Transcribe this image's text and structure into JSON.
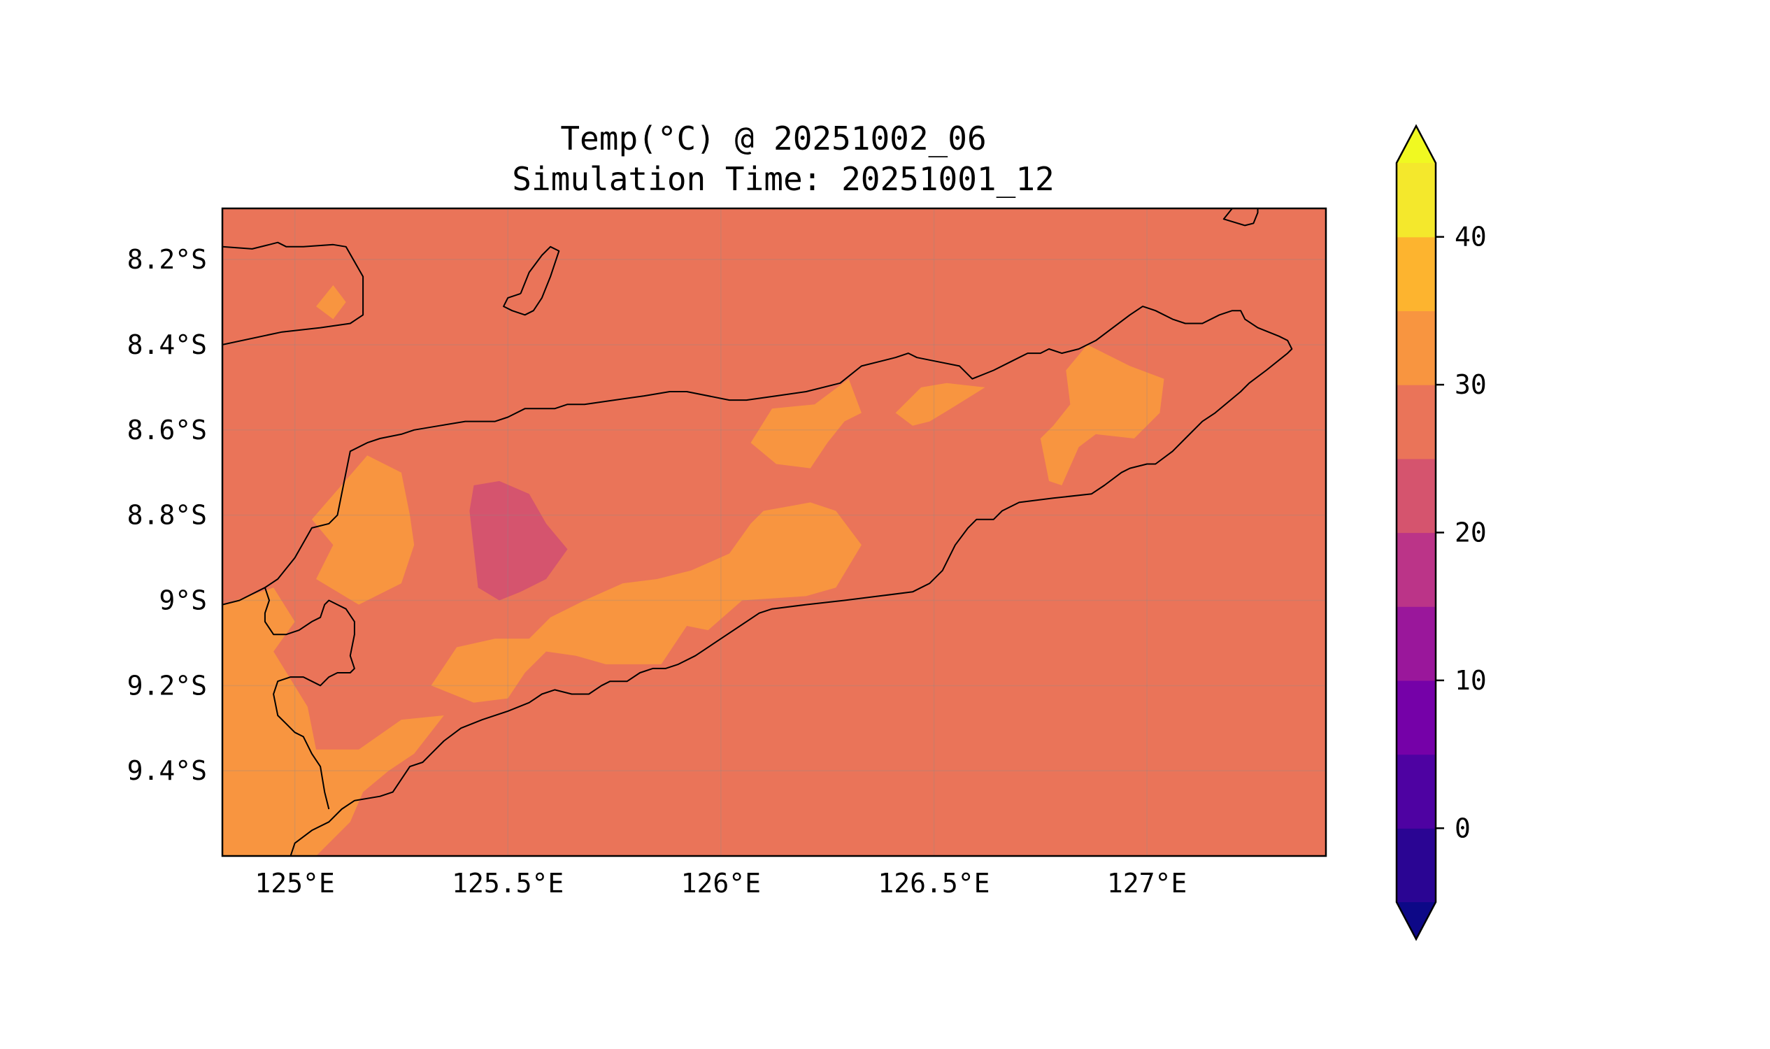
{
  "title": {
    "line1": "Temp(°C) @ 20251002_06",
    "line2": "Simulation Time: 20251001_12"
  },
  "map": {
    "lon_range": [
      124.83,
      127.42
    ],
    "lat_range": [
      -9.6,
      -8.08
    ],
    "x_ticks": [
      {
        "value": 125.0,
        "label": "125°E"
      },
      {
        "value": 125.5,
        "label": "125.5°E"
      },
      {
        "value": 126.0,
        "label": "126°E"
      },
      {
        "value": 126.5,
        "label": "126.5°E"
      },
      {
        "value": 127.0,
        "label": "127°E"
      }
    ],
    "y_ticks": [
      {
        "value": -8.2,
        "label": "8.2°S"
      },
      {
        "value": -8.4,
        "label": "8.4°S"
      },
      {
        "value": -8.6,
        "label": "8.6°S"
      },
      {
        "value": -8.8,
        "label": "8.8°S"
      },
      {
        "value": -9.0,
        "label": "9°S"
      },
      {
        "value": -9.2,
        "label": "9.2°S"
      },
      {
        "value": -9.4,
        "label": "9.4°S"
      }
    ],
    "gridlines": true,
    "background_level_color": "#ea7459"
  },
  "colorbar": {
    "levels": [
      -5,
      0,
      5,
      10,
      15,
      20,
      25,
      30,
      35,
      40,
      45
    ],
    "colors": [
      "#2a0593",
      "#4e02a2",
      "#7501a8",
      "#9a179b",
      "#bb3488",
      "#d5546e",
      "#ea7459",
      "#f89540",
      "#fdb42f",
      "#f4e82c"
    ],
    "under_color": "#0d0887",
    "over_color": "#f0f921",
    "tick_values": [
      0,
      10,
      20,
      30,
      40
    ],
    "tick_labels": [
      "0",
      "10",
      "20",
      "30",
      "40"
    ],
    "extend": "both"
  },
  "chart_data": {
    "type": "heatmap",
    "variable": "Temp(°C)",
    "base_level_range": [
      25,
      30
    ],
    "regions": [
      {
        "level_range": [
          30,
          35
        ],
        "color": "#f89540",
        "polygon_lonlat": [
          [
            125.05,
            -8.31
          ],
          [
            125.09,
            -8.34
          ],
          [
            125.12,
            -8.3
          ],
          [
            125.09,
            -8.26
          ],
          [
            125.05,
            -8.31
          ]
        ]
      },
      {
        "level_range": [
          30,
          35
        ],
        "color": "#f89540",
        "polygon_lonlat": [
          [
            125.04,
            -8.81
          ],
          [
            125.17,
            -8.66
          ],
          [
            125.25,
            -8.7
          ],
          [
            125.27,
            -8.8
          ],
          [
            125.28,
            -8.87
          ],
          [
            125.25,
            -8.96
          ],
          [
            125.15,
            -9.01
          ],
          [
            125.05,
            -8.95
          ],
          [
            125.09,
            -8.87
          ],
          [
            125.04,
            -8.81
          ]
        ]
      },
      {
        "level_range": [
          30,
          35
        ],
        "color": "#f89540",
        "polygon_lonlat": [
          [
            124.83,
            -9.01
          ],
          [
            124.95,
            -8.97
          ],
          [
            125.0,
            -9.05
          ],
          [
            124.95,
            -9.12
          ],
          [
            125.03,
            -9.25
          ],
          [
            125.05,
            -9.35
          ],
          [
            125.15,
            -9.35
          ],
          [
            125.25,
            -9.28
          ],
          [
            125.35,
            -9.27
          ],
          [
            125.28,
            -9.36
          ],
          [
            125.22,
            -9.4
          ],
          [
            125.16,
            -9.45
          ],
          [
            125.13,
            -9.52
          ],
          [
            125.05,
            -9.6
          ],
          [
            124.83,
            -9.6
          ],
          [
            124.83,
            -9.01
          ]
        ]
      },
      {
        "level_range": [
          30,
          35
        ],
        "color": "#f89540",
        "polygon_lonlat": [
          [
            125.32,
            -9.2
          ],
          [
            125.38,
            -9.11
          ],
          [
            125.47,
            -9.09
          ],
          [
            125.55,
            -9.09
          ],
          [
            125.6,
            -9.04
          ],
          [
            125.68,
            -9.0
          ],
          [
            125.77,
            -8.96
          ],
          [
            125.85,
            -8.95
          ],
          [
            125.93,
            -8.93
          ],
          [
            126.02,
            -8.89
          ],
          [
            126.07,
            -8.82
          ],
          [
            126.1,
            -8.79
          ],
          [
            126.21,
            -8.77
          ],
          [
            126.27,
            -8.79
          ],
          [
            126.33,
            -8.87
          ],
          [
            126.27,
            -8.97
          ],
          [
            126.2,
            -8.99
          ],
          [
            126.05,
            -9.0
          ],
          [
            125.97,
            -9.07
          ],
          [
            125.92,
            -9.06
          ],
          [
            125.86,
            -9.15
          ],
          [
            125.73,
            -9.15
          ],
          [
            125.66,
            -9.13
          ],
          [
            125.59,
            -9.12
          ],
          [
            125.54,
            -9.17
          ],
          [
            125.5,
            -9.23
          ],
          [
            125.42,
            -9.24
          ],
          [
            125.32,
            -9.2
          ]
        ]
      },
      {
        "level_range": [
          30,
          35
        ],
        "color": "#f89540",
        "polygon_lonlat": [
          [
            126.07,
            -8.63
          ],
          [
            126.12,
            -8.55
          ],
          [
            126.22,
            -8.54
          ],
          [
            126.3,
            -8.48
          ],
          [
            126.33,
            -8.56
          ],
          [
            126.29,
            -8.58
          ],
          [
            126.25,
            -8.63
          ],
          [
            126.21,
            -8.69
          ],
          [
            126.13,
            -8.68
          ],
          [
            126.07,
            -8.63
          ]
        ]
      },
      {
        "level_range": [
          30,
          35
        ],
        "color": "#f89540",
        "polygon_lonlat": [
          [
            126.41,
            -8.56
          ],
          [
            126.47,
            -8.5
          ],
          [
            126.53,
            -8.49
          ],
          [
            126.62,
            -8.5
          ],
          [
            126.54,
            -8.55
          ],
          [
            126.49,
            -8.58
          ],
          [
            126.45,
            -8.59
          ],
          [
            126.41,
            -8.56
          ]
        ]
      },
      {
        "level_range": [
          30,
          35
        ],
        "color": "#f89540",
        "polygon_lonlat": [
          [
            126.75,
            -8.62
          ],
          [
            126.78,
            -8.59
          ],
          [
            126.82,
            -8.54
          ],
          [
            126.81,
            -8.46
          ],
          [
            126.86,
            -8.4
          ],
          [
            126.96,
            -8.45
          ],
          [
            127.04,
            -8.48
          ],
          [
            127.03,
            -8.56
          ],
          [
            126.97,
            -8.62
          ],
          [
            126.88,
            -8.61
          ],
          [
            126.84,
            -8.64
          ],
          [
            126.8,
            -8.73
          ],
          [
            126.77,
            -8.72
          ],
          [
            126.75,
            -8.62
          ]
        ]
      },
      {
        "level_range": [
          20,
          25
        ],
        "color": "#d5546e",
        "polygon_lonlat": [
          [
            125.42,
            -8.73
          ],
          [
            125.48,
            -8.72
          ],
          [
            125.55,
            -8.75
          ],
          [
            125.59,
            -8.82
          ],
          [
            125.64,
            -8.88
          ],
          [
            125.59,
            -8.95
          ],
          [
            125.53,
            -8.98
          ],
          [
            125.48,
            -9.0
          ],
          [
            125.43,
            -8.97
          ],
          [
            125.42,
            -8.88
          ],
          [
            125.41,
            -8.79
          ],
          [
            125.42,
            -8.73
          ]
        ]
      }
    ]
  },
  "coastlines_lonlat": [
    [
      [
        124.83,
        -8.17
      ],
      [
        124.9,
        -8.175
      ],
      [
        124.94,
        -8.165
      ],
      [
        124.96,
        -8.16
      ],
      [
        124.98,
        -8.17
      ],
      [
        125.02,
        -8.17
      ],
      [
        125.09,
        -8.165
      ],
      [
        125.12,
        -8.17
      ],
      [
        125.16,
        -8.24
      ],
      [
        125.16,
        -8.33
      ],
      [
        125.13,
        -8.35
      ],
      [
        125.06,
        -8.36
      ],
      [
        124.97,
        -8.37
      ],
      [
        124.83,
        -8.4
      ]
    ],
    [
      [
        125.53,
        -8.28
      ],
      [
        125.55,
        -8.23
      ],
      [
        125.58,
        -8.19
      ],
      [
        125.6,
        -8.17
      ],
      [
        125.62,
        -8.18
      ],
      [
        125.6,
        -8.24
      ],
      [
        125.58,
        -8.29
      ],
      [
        125.56,
        -8.32
      ],
      [
        125.54,
        -8.33
      ],
      [
        125.51,
        -8.32
      ],
      [
        125.49,
        -8.31
      ],
      [
        125.5,
        -8.29
      ],
      [
        125.53,
        -8.28
      ]
    ],
    [
      [
        127.2,
        -8.08
      ],
      [
        127.18,
        -8.105
      ],
      [
        127.23,
        -8.12
      ],
      [
        127.25,
        -8.115
      ],
      [
        127.26,
        -8.09
      ],
      [
        127.26,
        -8.08
      ]
    ],
    [
      [
        124.83,
        -9.01
      ],
      [
        124.87,
        -9.0
      ],
      [
        124.93,
        -8.97
      ],
      [
        124.96,
        -8.95
      ],
      [
        125.0,
        -8.9
      ],
      [
        125.04,
        -8.83
      ],
      [
        125.08,
        -8.82
      ],
      [
        125.1,
        -8.8
      ],
      [
        125.12,
        -8.7
      ],
      [
        125.13,
        -8.65
      ],
      [
        125.17,
        -8.63
      ],
      [
        125.2,
        -8.62
      ],
      [
        125.25,
        -8.61
      ],
      [
        125.28,
        -8.6
      ],
      [
        125.34,
        -8.59
      ],
      [
        125.4,
        -8.58
      ],
      [
        125.47,
        -8.58
      ],
      [
        125.5,
        -8.57
      ],
      [
        125.54,
        -8.55
      ],
      [
        125.61,
        -8.55
      ],
      [
        125.64,
        -8.54
      ],
      [
        125.68,
        -8.54
      ],
      [
        125.75,
        -8.53
      ],
      [
        125.82,
        -8.52
      ],
      [
        125.88,
        -8.51
      ],
      [
        125.92,
        -8.51
      ],
      [
        126.02,
        -8.53
      ],
      [
        126.06,
        -8.53
      ],
      [
        126.13,
        -8.52
      ],
      [
        126.2,
        -8.51
      ],
      [
        126.28,
        -8.49
      ],
      [
        126.33,
        -8.45
      ],
      [
        126.37,
        -8.44
      ],
      [
        126.41,
        -8.43
      ],
      [
        126.44,
        -8.42
      ],
      [
        126.46,
        -8.43
      ],
      [
        126.51,
        -8.44
      ],
      [
        126.56,
        -8.45
      ],
      [
        126.59,
        -8.48
      ],
      [
        126.64,
        -8.46
      ],
      [
        126.68,
        -8.44
      ],
      [
        126.72,
        -8.42
      ],
      [
        126.75,
        -8.42
      ],
      [
        126.77,
        -8.41
      ],
      [
        126.8,
        -8.42
      ],
      [
        126.84,
        -8.41
      ],
      [
        126.88,
        -8.39
      ],
      [
        126.92,
        -8.36
      ],
      [
        126.96,
        -8.33
      ],
      [
        126.99,
        -8.31
      ],
      [
        127.02,
        -8.32
      ],
      [
        127.06,
        -8.34
      ],
      [
        127.09,
        -8.35
      ],
      [
        127.13,
        -8.35
      ],
      [
        127.17,
        -8.33
      ],
      [
        127.2,
        -8.32
      ],
      [
        127.22,
        -8.32
      ],
      [
        127.23,
        -8.34
      ],
      [
        127.26,
        -8.36
      ],
      [
        127.31,
        -8.38
      ],
      [
        127.33,
        -8.39
      ],
      [
        127.34,
        -8.41
      ],
      [
        127.33,
        -8.42
      ],
      [
        127.28,
        -8.46
      ],
      [
        127.24,
        -8.49
      ],
      [
        127.22,
        -8.51
      ],
      [
        127.16,
        -8.56
      ],
      [
        127.13,
        -8.58
      ],
      [
        127.09,
        -8.62
      ],
      [
        127.06,
        -8.65
      ],
      [
        127.02,
        -8.68
      ],
      [
        127.0,
        -8.68
      ],
      [
        126.96,
        -8.69
      ],
      [
        126.94,
        -8.7
      ],
      [
        126.9,
        -8.73
      ],
      [
        126.87,
        -8.75
      ],
      [
        126.78,
        -8.76
      ],
      [
        126.7,
        -8.77
      ],
      [
        126.66,
        -8.79
      ],
      [
        126.64,
        -8.81
      ],
      [
        126.6,
        -8.81
      ],
      [
        126.58,
        -8.83
      ],
      [
        126.55,
        -8.87
      ],
      [
        126.52,
        -8.93
      ],
      [
        126.49,
        -8.96
      ],
      [
        126.47,
        -8.97
      ],
      [
        126.45,
        -8.98
      ],
      [
        126.37,
        -8.99
      ],
      [
        126.29,
        -9.0
      ],
      [
        126.2,
        -9.01
      ],
      [
        126.12,
        -9.02
      ],
      [
        126.09,
        -9.03
      ],
      [
        126.06,
        -9.05
      ],
      [
        126.0,
        -9.09
      ],
      [
        125.94,
        -9.13
      ],
      [
        125.9,
        -9.15
      ],
      [
        125.87,
        -9.16
      ],
      [
        125.84,
        -9.16
      ],
      [
        125.81,
        -9.17
      ],
      [
        125.78,
        -9.19
      ],
      [
        125.74,
        -9.19
      ],
      [
        125.72,
        -9.2
      ],
      [
        125.69,
        -9.22
      ],
      [
        125.65,
        -9.22
      ],
      [
        125.61,
        -9.21
      ],
      [
        125.58,
        -9.22
      ],
      [
        125.55,
        -9.24
      ],
      [
        125.5,
        -9.26
      ],
      [
        125.44,
        -9.28
      ],
      [
        125.39,
        -9.3
      ],
      [
        125.35,
        -9.33
      ],
      [
        125.32,
        -9.36
      ],
      [
        125.3,
        -9.38
      ],
      [
        125.27,
        -9.39
      ],
      [
        125.25,
        -9.42
      ],
      [
        125.23,
        -9.45
      ],
      [
        125.2,
        -9.46
      ],
      [
        125.14,
        -9.47
      ],
      [
        125.11,
        -9.49
      ],
      [
        125.08,
        -9.52
      ],
      [
        125.04,
        -9.54
      ],
      [
        125.0,
        -9.57
      ],
      [
        124.99,
        -9.6
      ]
    ],
    [
      [
        124.93,
        -8.97
      ],
      [
        124.94,
        -9.0
      ],
      [
        124.93,
        -9.03
      ],
      [
        124.93,
        -9.05
      ],
      [
        124.95,
        -9.08
      ],
      [
        124.98,
        -9.08
      ],
      [
        125.01,
        -9.07
      ],
      [
        125.04,
        -9.05
      ],
      [
        125.06,
        -9.04
      ],
      [
        125.07,
        -9.01
      ],
      [
        125.08,
        -9.0
      ],
      [
        125.1,
        -9.01
      ],
      [
        125.12,
        -9.02
      ],
      [
        125.14,
        -9.05
      ],
      [
        125.14,
        -9.08
      ],
      [
        125.13,
        -9.13
      ],
      [
        125.14,
        -9.16
      ],
      [
        125.13,
        -9.17
      ],
      [
        125.1,
        -9.17
      ],
      [
        125.08,
        -9.18
      ],
      [
        125.06,
        -9.2
      ],
      [
        125.04,
        -9.19
      ],
      [
        125.02,
        -9.18
      ],
      [
        124.99,
        -9.18
      ],
      [
        124.96,
        -9.19
      ],
      [
        124.95,
        -9.22
      ],
      [
        124.96,
        -9.27
      ],
      [
        124.98,
        -9.29
      ],
      [
        125.0,
        -9.31
      ],
      [
        125.02,
        -9.32
      ],
      [
        125.04,
        -9.36
      ],
      [
        125.06,
        -9.39
      ],
      [
        125.07,
        -9.45
      ],
      [
        125.08,
        -9.49
      ]
    ]
  ]
}
